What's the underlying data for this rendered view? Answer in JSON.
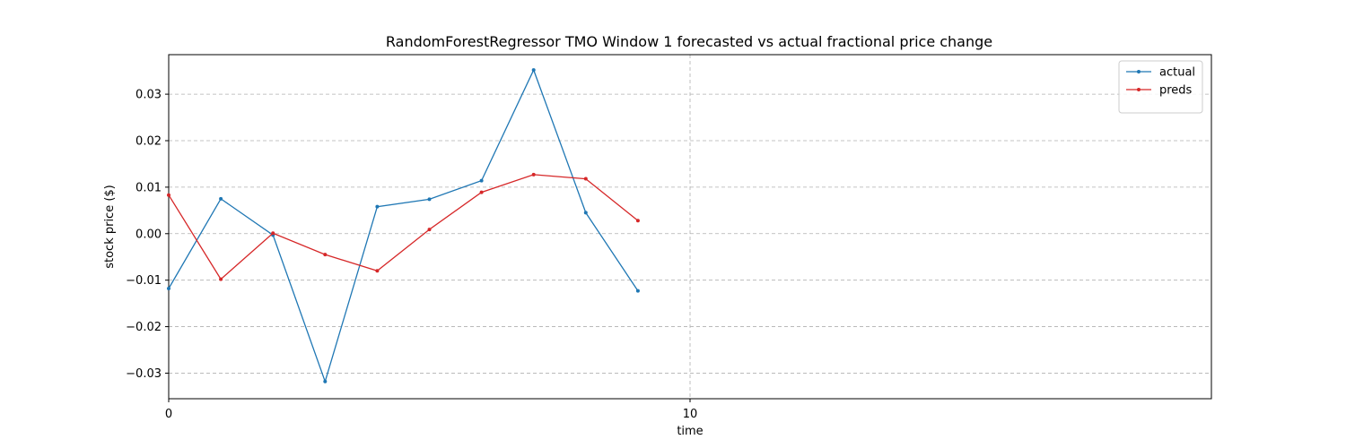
{
  "chart_data": {
    "type": "line",
    "title": "RandomForestRegressor TMO Window 1 forecasted vs actual fractional price change",
    "xlabel": "time",
    "ylabel": "stock price ($)",
    "xlim": [
      0,
      20
    ],
    "ylim": [
      -0.0355,
      0.0385
    ],
    "xticks": [
      0,
      10
    ],
    "yticks": [
      -0.03,
      -0.02,
      -0.01,
      0.0,
      0.01,
      0.02,
      0.03
    ],
    "ytick_labels": [
      "−0.03",
      "−0.02",
      "−0.01",
      "0.00",
      "0.01",
      "0.02",
      "0.03"
    ],
    "grid": true,
    "legend_position": "top-right",
    "x": [
      0,
      1,
      2,
      3,
      4,
      5,
      6,
      7,
      8,
      9
    ],
    "series": [
      {
        "name": "actual",
        "color": "#1f77b4",
        "values": [
          -0.0118,
          0.0075,
          -0.0003,
          -0.0318,
          0.0058,
          0.0074,
          0.0114,
          0.0352,
          0.0045,
          -0.0123
        ]
      },
      {
        "name": "preds",
        "color": "#d62728",
        "values": [
          0.0083,
          -0.0098,
          0.0001,
          -0.0045,
          -0.008,
          0.0009,
          0.0089,
          0.0127,
          0.0118,
          0.0028
        ]
      }
    ]
  }
}
